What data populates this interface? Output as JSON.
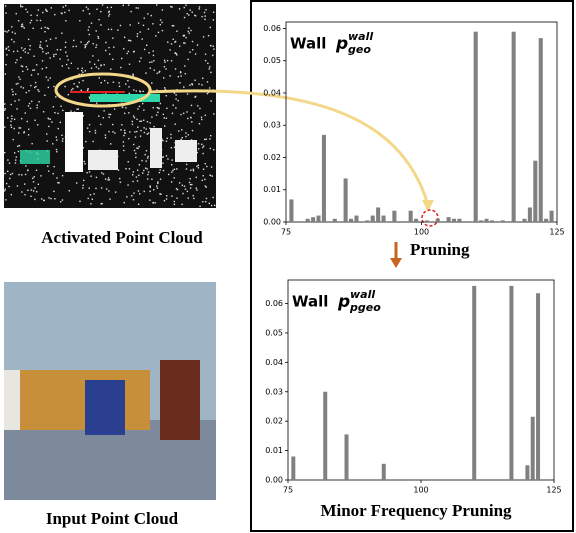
{
  "chart_data": [
    {
      "type": "bar",
      "title": "Wall",
      "title_symbol": "p",
      "title_sup": "wall",
      "title_sub": "geo",
      "color": "#808080",
      "x": [
        76,
        79,
        80,
        81,
        82,
        84,
        86,
        87,
        88,
        90,
        91,
        92,
        93,
        95,
        98,
        99,
        101,
        103,
        105,
        106,
        107,
        110,
        111,
        112,
        113,
        115,
        117,
        119,
        120,
        121,
        122,
        123,
        124
      ],
      "values": [
        0.007,
        0.001,
        0.0015,
        0.002,
        0.027,
        0.001,
        0.0135,
        0.001,
        0.002,
        0.0005,
        0.002,
        0.0045,
        0.002,
        0.0035,
        0.0035,
        0.001,
        0.0005,
        0.001,
        0.0015,
        0.001,
        0.001,
        0.059,
        0.0005,
        0.001,
        0.0005,
        0.0005,
        0.059,
        0.001,
        0.0045,
        0.019,
        0.057,
        0.001,
        0.0035
      ],
      "xlim": [
        75,
        125
      ],
      "xticks": [
        75,
        100,
        125
      ],
      "ylim": [
        0,
        0.062
      ],
      "yticks": [
        {
          "value": 0,
          "label": "0.00"
        },
        0.01,
        0.02,
        0.03,
        0.04,
        0.05,
        0.06
      ]
    },
    {
      "type": "bar",
      "title": "Wall",
      "title_symbol": "p",
      "title_sup": "wall",
      "title_sub": "pgeo",
      "color": "#808080",
      "x": [
        76,
        82,
        86,
        93,
        110,
        117,
        120,
        121,
        122
      ],
      "values": [
        0.008,
        0.03,
        0.0155,
        0.0055,
        0.066,
        0.066,
        0.005,
        0.0215,
        0.0635
      ],
      "xlim": [
        75,
        125
      ],
      "xticks": [
        75,
        100,
        125
      ],
      "ylim": [
        0,
        0.068
      ],
      "yticks": [
        {
          "value": 0,
          "label": "0.00"
        },
        0.01,
        0.02,
        0.03,
        0.04,
        0.05,
        0.06
      ]
    }
  ],
  "labels": {
    "activated": "Activated Point Cloud",
    "input": "Input Point Cloud",
    "pruning": "Pruning",
    "minor": "Minor Frequency Pruning"
  }
}
